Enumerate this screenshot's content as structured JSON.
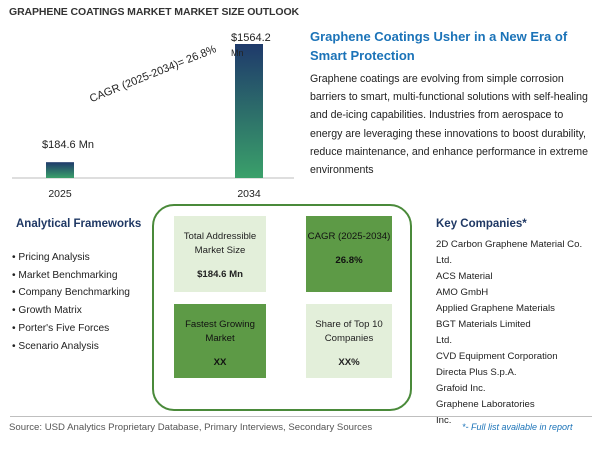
{
  "page_title": "GRAPHENE COATINGS MARKET MARKET SIZE OUTLOOK",
  "chart_data": {
    "type": "bar",
    "categories": [
      "2025",
      "2034"
    ],
    "values": [
      184.6,
      1564.2
    ],
    "value_labels": [
      "$184.6 Mn",
      "$1564.2 Mn"
    ],
    "xlabel": "",
    "ylabel": "",
    "ylim": [
      0,
      1564.2
    ],
    "grid": false,
    "annotation": "CAGR (2025-2034)=   26.8%",
    "colors": {
      "bar_top": "#1f3a6b",
      "bar_bottom": "#3aa06a"
    }
  },
  "headline": "Graphene Coatings Usher in a New Era of Smart Protection",
  "summary": "Graphene coatings are evolving from simple corrosion barriers to smart, multi-functional solutions with self-healing and de-icing capabilities. Industries from aerospace to energy are leveraging these innovations to boost durability, reduce maintenance, and enhance performance in extreme environments",
  "analytical_frameworks": {
    "title": "Analytical Frameworks",
    "items": [
      "Pricing Analysis",
      "Market Benchmarking",
      "Company Benchmarking",
      "Growth Matrix",
      "Porter's Five Forces",
      "Scenario Analysis"
    ]
  },
  "metrics": [
    {
      "label": "Total Addressible Market Size",
      "value": "$184.6 Mn"
    },
    {
      "label": "CAGR (2025-2034)",
      "value": "26.8%"
    },
    {
      "label": "Fastest Growing Market",
      "value": "XX"
    },
    {
      "label": "Share of Top 10 Companies",
      "value": "XX%"
    }
  ],
  "key_companies": {
    "title": "Key Companies*",
    "lines": [
      "2D Carbon Graphene Material Co.",
      "Ltd.",
      "ACS Material",
      "AMO GmbH",
      "Applied Graphene Materials",
      "BGT Materials Limited",
      "Ltd.",
      "CVD Equipment Corporation",
      "Directa Plus S.p.A.",
      "Grafoid Inc.",
      "Graphene Laboratories",
      "Inc."
    ]
  },
  "source": "Source: USD Analytics Proprietary Database, Primary Interviews, Secondary Sources",
  "full_list_note": "*- Full list available in report",
  "colors": {
    "accent_blue": "#1b73b8",
    "dark_green": "#5d9a46",
    "light_green": "#e3efda",
    "box_border": "#4a8a3a"
  }
}
